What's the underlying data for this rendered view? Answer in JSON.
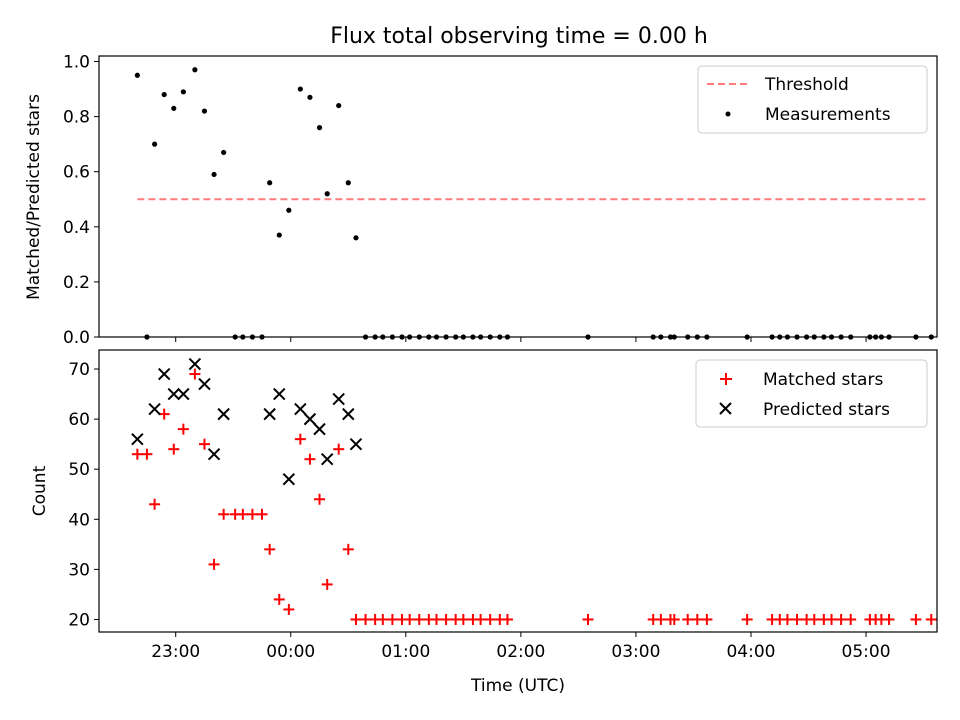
{
  "figure": {
    "title": "Flux total observing time = 0.00 h"
  },
  "chart_data": [
    {
      "type": "scatter",
      "panel": "top",
      "ylabel": "Matched/Predicted stars",
      "xlabel": "",
      "ylim": [
        0,
        1.02
      ],
      "y_ticks": [
        "0.0",
        "0.2",
        "0.4",
        "0.6",
        "0.8",
        "1.0"
      ],
      "y_tick_values": [
        0,
        0.2,
        0.4,
        0.6,
        0.8,
        1.0
      ],
      "grid": false,
      "legend_position": "top-right",
      "threshold": {
        "name": "Threshold",
        "value": 0.5,
        "x_range": [
          "22:40",
          "05:33"
        ],
        "color": "#ff7b7b",
        "style": "dashed"
      },
      "series": [
        {
          "name": "Measurements",
          "color": "#000000",
          "marker": "dot",
          "points": [
            [
              "22:40",
              0.95
            ],
            [
              "22:45",
              0.0
            ],
            [
              "22:49",
              0.7
            ],
            [
              "22:54",
              0.88
            ],
            [
              "22:59",
              0.83
            ],
            [
              "23:04",
              0.89
            ],
            [
              "23:10",
              0.97
            ],
            [
              "23:15",
              0.82
            ],
            [
              "23:20",
              0.59
            ],
            [
              "23:25",
              0.67
            ],
            [
              "23:31",
              0.0
            ],
            [
              "23:35",
              0.0
            ],
            [
              "23:40",
              0.0
            ],
            [
              "23:45",
              0.0
            ],
            [
              "23:49",
              0.56
            ],
            [
              "23:54",
              0.37
            ],
            [
              "23:59",
              0.46
            ],
            [
              "00:05",
              0.9
            ],
            [
              "00:10",
              0.87
            ],
            [
              "00:15",
              0.76
            ],
            [
              "00:19",
              0.52
            ],
            [
              "00:25",
              0.84
            ],
            [
              "00:30",
              0.56
            ],
            [
              "00:34",
              0.36
            ],
            [
              "00:39",
              0.0
            ],
            [
              "00:44",
              0.0
            ],
            [
              "00:48",
              0.0
            ],
            [
              "00:53",
              0.0
            ],
            [
              "00:58",
              0.0
            ],
            [
              "01:02",
              0.0
            ],
            [
              "01:07",
              0.0
            ],
            [
              "01:12",
              0.0
            ],
            [
              "01:16",
              0.0
            ],
            [
              "01:21",
              0.0
            ],
            [
              "01:26",
              0.0
            ],
            [
              "01:30",
              0.0
            ],
            [
              "01:35",
              0.0
            ],
            [
              "01:39",
              0.0
            ],
            [
              "01:44",
              0.0
            ],
            [
              "01:49",
              0.0
            ],
            [
              "01:53",
              0.0
            ],
            [
              "02:35",
              0.0
            ],
            [
              "03:09",
              0.0
            ],
            [
              "03:13",
              0.0
            ],
            [
              "03:18",
              0.0
            ],
            [
              "03:20",
              0.0
            ],
            [
              "03:27",
              0.0
            ],
            [
              "03:32",
              0.0
            ],
            [
              "03:37",
              0.0
            ],
            [
              "03:58",
              0.0
            ],
            [
              "04:11",
              0.0
            ],
            [
              "04:15",
              0.0
            ],
            [
              "04:19",
              0.0
            ],
            [
              "04:24",
              0.0
            ],
            [
              "04:29",
              0.0
            ],
            [
              "04:33",
              0.0
            ],
            [
              "04:38",
              0.0
            ],
            [
              "04:42",
              0.0
            ],
            [
              "04:47",
              0.0
            ],
            [
              "04:52",
              0.0
            ],
            [
              "05:02",
              0.0
            ],
            [
              "05:05",
              0.0
            ],
            [
              "05:08",
              0.0
            ],
            [
              "05:12",
              0.0
            ],
            [
              "05:26",
              0.0
            ],
            [
              "05:34",
              0.0
            ]
          ]
        }
      ]
    },
    {
      "type": "scatter",
      "panel": "bottom",
      "ylabel": "Count",
      "xlabel": "Time (UTC)",
      "ylim": [
        17.5,
        73.8
      ],
      "xlim": [
        "22:20",
        "05:37"
      ],
      "x_ticks": [
        "23:00",
        "00:00",
        "01:00",
        "02:00",
        "03:00",
        "04:00",
        "05:00"
      ],
      "y_ticks": [
        "20",
        "30",
        "40",
        "50",
        "60",
        "70"
      ],
      "y_tick_values": [
        20,
        30,
        40,
        50,
        60,
        70
      ],
      "grid": false,
      "legend_position": "top-right",
      "series": [
        {
          "name": "Matched stars",
          "color": "#ff0000",
          "marker": "plus",
          "points": [
            [
              "22:40",
              53
            ],
            [
              "22:45",
              53
            ],
            [
              "22:49",
              43
            ],
            [
              "22:54",
              61
            ],
            [
              "22:59",
              54
            ],
            [
              "23:04",
              58
            ],
            [
              "23:10",
              69
            ],
            [
              "23:15",
              55
            ],
            [
              "23:20",
              31
            ],
            [
              "23:25",
              41
            ],
            [
              "23:31",
              41
            ],
            [
              "23:35",
              41
            ],
            [
              "23:40",
              41
            ],
            [
              "23:45",
              41
            ],
            [
              "23:49",
              34
            ],
            [
              "23:54",
              24
            ],
            [
              "23:59",
              22
            ],
            [
              "00:05",
              56
            ],
            [
              "00:10",
              52
            ],
            [
              "00:15",
              44
            ],
            [
              "00:19",
              27
            ],
            [
              "00:25",
              54
            ],
            [
              "00:30",
              34
            ],
            [
              "00:34",
              20
            ],
            [
              "00:39",
              20
            ],
            [
              "00:44",
              20
            ],
            [
              "00:48",
              20
            ],
            [
              "00:53",
              20
            ],
            [
              "00:58",
              20
            ],
            [
              "01:02",
              20
            ],
            [
              "01:07",
              20
            ],
            [
              "01:12",
              20
            ],
            [
              "01:16",
              20
            ],
            [
              "01:21",
              20
            ],
            [
              "01:26",
              20
            ],
            [
              "01:30",
              20
            ],
            [
              "01:35",
              20
            ],
            [
              "01:39",
              20
            ],
            [
              "01:44",
              20
            ],
            [
              "01:49",
              20
            ],
            [
              "01:53",
              20
            ],
            [
              "02:35",
              20
            ],
            [
              "03:09",
              20
            ],
            [
              "03:13",
              20
            ],
            [
              "03:18",
              20
            ],
            [
              "03:20",
              20
            ],
            [
              "03:27",
              20
            ],
            [
              "03:32",
              20
            ],
            [
              "03:37",
              20
            ],
            [
              "03:58",
              20
            ],
            [
              "04:11",
              20
            ],
            [
              "04:15",
              20
            ],
            [
              "04:19",
              20
            ],
            [
              "04:24",
              20
            ],
            [
              "04:29",
              20
            ],
            [
              "04:33",
              20
            ],
            [
              "04:38",
              20
            ],
            [
              "04:42",
              20
            ],
            [
              "04:47",
              20
            ],
            [
              "04:52",
              20
            ],
            [
              "05:02",
              20
            ],
            [
              "05:05",
              20
            ],
            [
              "05:08",
              20
            ],
            [
              "05:12",
              20
            ],
            [
              "05:26",
              20
            ],
            [
              "05:34",
              20
            ]
          ]
        },
        {
          "name": "Predicted stars",
          "color": "#000000",
          "marker": "cross",
          "points": [
            [
              "22:40",
              56
            ],
            [
              "22:49",
              62
            ],
            [
              "22:54",
              69
            ],
            [
              "22:59",
              65
            ],
            [
              "23:04",
              65
            ],
            [
              "23:10",
              71
            ],
            [
              "23:15",
              67
            ],
            [
              "23:20",
              53
            ],
            [
              "23:25",
              61
            ],
            [
              "23:49",
              61
            ],
            [
              "23:54",
              65
            ],
            [
              "23:59",
              48
            ],
            [
              "00:05",
              62
            ],
            [
              "00:10",
              60
            ],
            [
              "00:15",
              58
            ],
            [
              "00:19",
              52
            ],
            [
              "00:25",
              64
            ],
            [
              "00:30",
              61
            ],
            [
              "00:34",
              55
            ]
          ]
        }
      ]
    }
  ]
}
